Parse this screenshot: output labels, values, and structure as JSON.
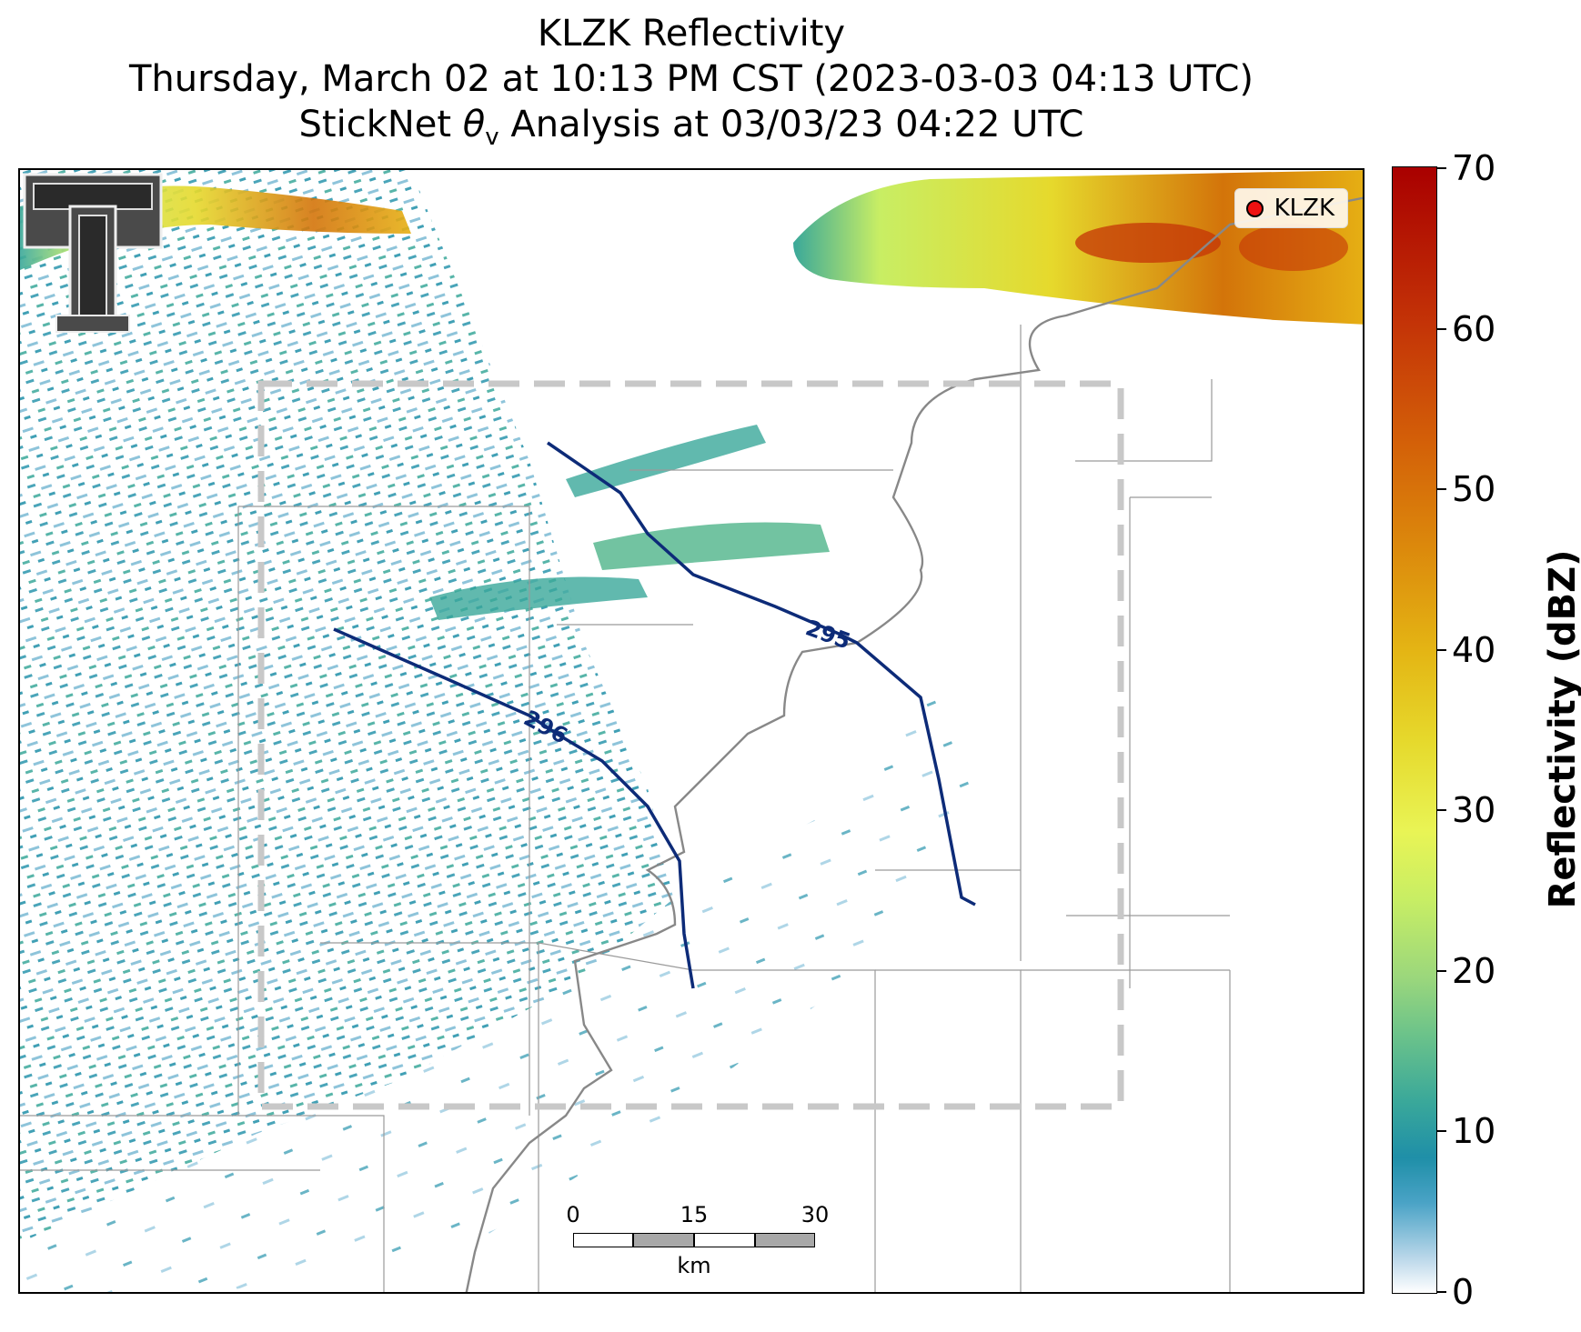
{
  "title": {
    "line1": "KLZK Reflectivity",
    "line2": "Thursday, March 02 at 10:13 PM CST (2023-03-03 04:13 UTC)",
    "line3_prefix": "StickNet ",
    "line3_symbol": "θ",
    "line3_subscript": "v",
    "line3_suffix": " Analysis at 03/03/23 04:22 UTC"
  },
  "legend": {
    "label": "KLZK",
    "marker_color": "#ee1111"
  },
  "contours": [
    {
      "label": "295",
      "color": "#0d2b78"
    },
    {
      "label": "296",
      "color": "#0d2b78"
    }
  ],
  "scale_bar": {
    "labels": [
      "0",
      "15",
      "30"
    ],
    "unit": "km"
  },
  "colorbar": {
    "title": "Reflectivity (dBZ)",
    "ticks": [
      "0",
      "10",
      "20",
      "30",
      "40",
      "50",
      "60",
      "70"
    ],
    "min": 0,
    "max": 70
  },
  "colors": {
    "contour": "#0d2b78",
    "domain_box": "#c8c8c8",
    "river": "#888888"
  }
}
